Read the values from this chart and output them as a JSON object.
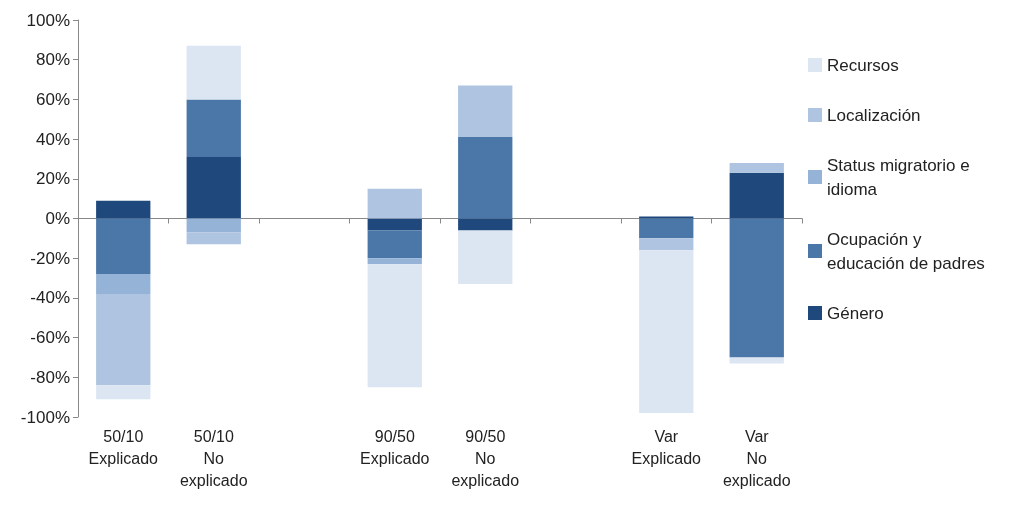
{
  "chart_data": {
    "type": "bar",
    "stacked": true,
    "categories": [
      "50/10\nExplicado",
      "50/10\nNo\nexplicado",
      null,
      "90/50\nExplicado",
      "90/50\nNo\nexplicado",
      null,
      "Var\nExplicado",
      "Var\nNo\nexplicado"
    ],
    "series": [
      {
        "name": "Género",
        "color": "#1f497d",
        "values": [
          9,
          31,
          null,
          -6,
          -6,
          null,
          1,
          23
        ]
      },
      {
        "name": "Ocupación y educación de padres",
        "color": "#4a76a8",
        "values": [
          -28,
          29,
          null,
          -14,
          41,
          null,
          -10,
          -70
        ]
      },
      {
        "name": "Status migratorio e idioma",
        "color": "#95b3d7",
        "values": [
          -10,
          -7,
          null,
          -3,
          null,
          null,
          null,
          null
        ]
      },
      {
        "name": "Localización",
        "color": "#aec4e0",
        "values": [
          -46,
          -6,
          null,
          15,
          26,
          null,
          -6,
          5
        ]
      },
      {
        "name": "Recursos",
        "color": "#dce6f2",
        "values": [
          -7,
          27,
          null,
          -62,
          -27,
          null,
          -82,
          -3
        ]
      }
    ],
    "ylim": [
      -100,
      100
    ],
    "yticks": [
      {
        "value": -100,
        "label": "-100%"
      },
      {
        "value": -80,
        "label": "-80%"
      },
      {
        "value": -60,
        "label": "-60%"
      },
      {
        "value": -40,
        "label": "-40%"
      },
      {
        "value": -20,
        "label": "-20%"
      },
      {
        "value": 0,
        "label": "0%"
      },
      {
        "value": 20,
        "label": "20%"
      },
      {
        "value": 40,
        "label": "40%"
      },
      {
        "value": 60,
        "label": "60%"
      },
      {
        "value": 80,
        "label": "80%"
      },
      {
        "value": 100,
        "label": "100%"
      }
    ],
    "legend": "right"
  }
}
